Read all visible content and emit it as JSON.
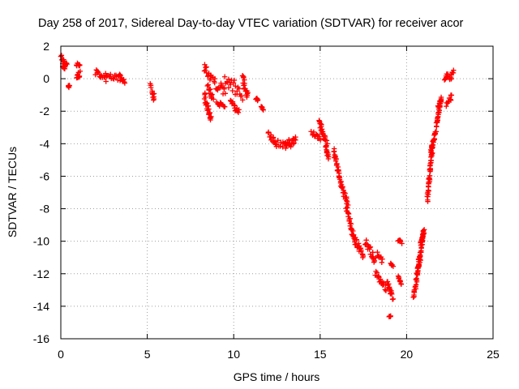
{
  "chart_data": {
    "type": "scatter",
    "title": "Day 258 of 2017, Sidereal Day-to-day VTEC variation (SDTVAR) for receiver acor",
    "xlabel": "GPS time / hours",
    "ylabel": "SDTVAR / TECUs",
    "xlim": [
      0,
      25
    ],
    "ylim": [
      -16,
      2
    ],
    "xticks": [
      0,
      5,
      10,
      15,
      20,
      25
    ],
    "yticks": [
      2,
      0,
      -2,
      -4,
      -6,
      -8,
      -10,
      -12,
      -14,
      -16
    ],
    "grid": true,
    "marker": "+",
    "color": "#ff0000",
    "series": [
      {
        "name": "SDTVAR",
        "segments": [
          {
            "x": [
              0.0,
              0.25
            ],
            "y": [
              1.3,
              0.9
            ],
            "spread": 0.45
          },
          {
            "x": [
              0.1,
              0.35
            ],
            "y": [
              0.6,
              0.9
            ],
            "spread": 0.4
          },
          {
            "x": [
              0.45,
              0.5
            ],
            "y": [
              -0.4,
              -0.5
            ],
            "spread": 0.2
          },
          {
            "x": [
              0.9,
              1.1
            ],
            "y": [
              0.8,
              0.9
            ],
            "spread": 0.25
          },
          {
            "x": [
              0.9,
              1.1
            ],
            "y": [
              0.0,
              0.4
            ],
            "spread": 0.45
          },
          {
            "x": [
              2.0,
              2.6
            ],
            "y": [
              0.4,
              -0.1
            ],
            "spread": 0.4
          },
          {
            "x": [
              2.6,
              3.4
            ],
            "y": [
              0.2,
              0.0
            ],
            "spread": 0.35
          },
          {
            "x": [
              3.4,
              3.7
            ],
            "y": [
              0.2,
              -0.3
            ],
            "spread": 0.3
          },
          {
            "x": [
              5.2,
              5.4
            ],
            "y": [
              -0.5,
              -1.2
            ],
            "spread": 0.4
          },
          {
            "x": [
              8.3,
              8.7
            ],
            "y": [
              0.7,
              0.0
            ],
            "spread": 0.5
          },
          {
            "x": [
              8.3,
              8.7
            ],
            "y": [
              -1.0,
              -2.6
            ],
            "spread": 0.5
          },
          {
            "x": [
              8.5,
              8.8
            ],
            "y": [
              -0.5,
              -1.2
            ],
            "spread": 0.4
          },
          {
            "x": [
              8.8,
              9.5
            ],
            "y": [
              -0.1,
              -0.9
            ],
            "spread": 0.7
          },
          {
            "x": [
              9.0,
              9.5
            ],
            "y": [
              -1.4,
              -1.8
            ],
            "spread": 0.3
          },
          {
            "x": [
              9.5,
              10.5
            ],
            "y": [
              0.0,
              -1.0
            ],
            "spread": 0.9
          },
          {
            "x": [
              9.8,
              10.3
            ],
            "y": [
              -1.3,
              -2.1
            ],
            "spread": 0.4
          },
          {
            "x": [
              10.5,
              10.8
            ],
            "y": [
              0.1,
              -1.2
            ],
            "spread": 0.6
          },
          {
            "x": [
              11.3,
              11.4
            ],
            "y": [
              -1.2,
              -1.4
            ],
            "spread": 0.2
          },
          {
            "x": [
              11.6,
              11.7
            ],
            "y": [
              -1.7,
              -1.9
            ],
            "spread": 0.15
          },
          {
            "x": [
              12.0,
              12.5
            ],
            "y": [
              -3.4,
              -4.0
            ],
            "spread": 0.35
          },
          {
            "x": [
              12.5,
              13.5
            ],
            "y": [
              -4.0,
              -4.0
            ],
            "spread": 0.45
          },
          {
            "x": [
              13.0,
              13.6
            ],
            "y": [
              -4.1,
              -3.6
            ],
            "spread": 0.4
          },
          {
            "x": [
              14.5,
              15.0
            ],
            "y": [
              -3.3,
              -3.6
            ],
            "spread": 0.35
          },
          {
            "x": [
              14.95,
              15.05
            ],
            "y": [
              -2.6,
              -2.8
            ],
            "spread": 0.15
          },
          {
            "x": [
              15.0,
              15.4
            ],
            "y": [
              -3.0,
              -4.0
            ],
            "spread": 0.4
          },
          {
            "x": [
              15.3,
              15.5
            ],
            "y": [
              -4.2,
              -4.8
            ],
            "spread": 0.3
          },
          {
            "x": [
              15.8,
              16.2
            ],
            "y": [
              -4.5,
              -6.5
            ],
            "spread": 0.4
          },
          {
            "x": [
              16.2,
              16.6
            ],
            "y": [
              -6.5,
              -7.8
            ],
            "spread": 0.4
          },
          {
            "x": [
              16.5,
              17.0
            ],
            "y": [
              -7.8,
              -10.0
            ],
            "spread": 0.45
          },
          {
            "x": [
              17.0,
              17.5
            ],
            "y": [
              -9.8,
              -11.0
            ],
            "spread": 0.45
          },
          {
            "x": [
              17.6,
              18.2
            ],
            "y": [
              -10.0,
              -11.2
            ],
            "spread": 0.5
          },
          {
            "x": [
              18.3,
              18.6
            ],
            "y": [
              -10.8,
              -11.2
            ],
            "spread": 0.3
          },
          {
            "x": [
              18.2,
              18.8
            ],
            "y": [
              -12.0,
              -12.9
            ],
            "spread": 0.4
          },
          {
            "x": [
              18.9,
              19.2
            ],
            "y": [
              -12.5,
              -13.5
            ],
            "spread": 0.3
          },
          {
            "x": [
              19.1,
              19.2
            ],
            "y": [
              -11.4,
              -11.5
            ],
            "spread": 0.1
          },
          {
            "x": [
              19.0,
              19.1
            ],
            "y": [
              -14.6,
              -14.6
            ],
            "spread": 0.1
          },
          {
            "x": [
              19.5,
              19.7
            ],
            "y": [
              -9.9,
              -10.1
            ],
            "spread": 0.2
          },
          {
            "x": [
              19.5,
              19.7
            ],
            "y": [
              -12.2,
              -12.6
            ],
            "spread": 0.25
          },
          {
            "x": [
              20.4,
              20.8
            ],
            "y": [
              -13.4,
              -11.0
            ],
            "spread": 0.35
          },
          {
            "x": [
              20.6,
              21.0
            ],
            "y": [
              -12.0,
              -9.3
            ],
            "spread": 0.35
          },
          {
            "x": [
              20.8,
              21.0
            ],
            "y": [
              -10.2,
              -9.4
            ],
            "spread": 0.3
          },
          {
            "x": [
              21.2,
              21.5
            ],
            "y": [
              -7.4,
              -4.0
            ],
            "spread": 0.35
          },
          {
            "x": [
              21.4,
              21.7
            ],
            "y": [
              -4.5,
              -3.2
            ],
            "spread": 0.3
          },
          {
            "x": [
              21.7,
              22.0
            ],
            "y": [
              -3.0,
              -1.2
            ],
            "spread": 0.3
          },
          {
            "x": [
              21.8,
              22.0
            ],
            "y": [
              -1.8,
              -1.4
            ],
            "spread": 0.25
          },
          {
            "x": [
              22.2,
              22.4
            ],
            "y": [
              0.0,
              0.3
            ],
            "spread": 0.25
          },
          {
            "x": [
              22.3,
              22.6
            ],
            "y": [
              -1.6,
              -1.1
            ],
            "spread": 0.3
          },
          {
            "x": [
              22.5,
              22.7
            ],
            "y": [
              0.0,
              0.4
            ],
            "spread": 0.3
          }
        ]
      }
    ]
  }
}
